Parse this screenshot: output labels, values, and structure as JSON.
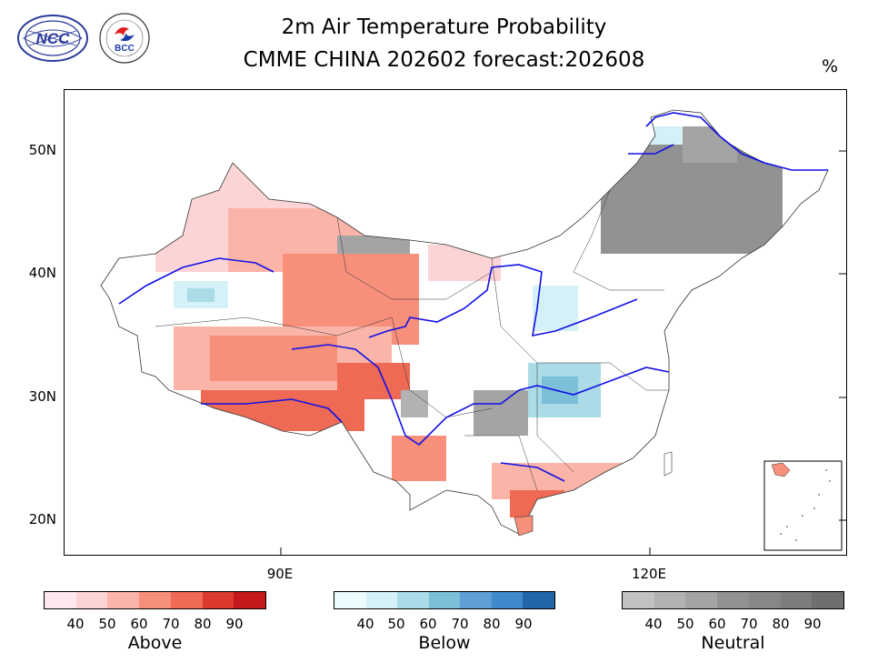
{
  "header": {
    "title_line1": "2m Air Temperature Probability",
    "title_line2": "CMME CHINA 202602 forecast:202608",
    "unit": "%"
  },
  "logos": {
    "ncc": {
      "text": "NCC",
      "icon": "ncc-logo-icon"
    },
    "bcc": {
      "text": "BCC",
      "icon": "bcc-logo-icon"
    }
  },
  "map": {
    "region": "China",
    "y_ticks": [
      "50N",
      "40N",
      "30N",
      "20N"
    ],
    "x_ticks": [
      "90E",
      "120E"
    ],
    "inset": "South China Sea islands"
  },
  "chart_data": {
    "type": "heatmap",
    "title": "2m Air Temperature Probability",
    "subtitle": "CMME CHINA 202602 forecast:202608",
    "unit": "%",
    "lat_ticks": [
      "50N",
      "40N",
      "30N",
      "20N"
    ],
    "lon_ticks": [
      "90E",
      "120E"
    ],
    "categories": [
      "Above",
      "Below",
      "Neutral"
    ],
    "legend": {
      "ticks": [
        "40",
        "50",
        "60",
        "70",
        "80",
        "90"
      ],
      "bins": [
        [
          40,
          50
        ],
        [
          50,
          60
        ],
        [
          60,
          70
        ],
        [
          70,
          80
        ],
        [
          80,
          90
        ],
        [
          90,
          100
        ]
      ]
    }
  },
  "legends": [
    {
      "label": "Above",
      "colors": [
        "#fde8f1",
        "#fdd4d6",
        "#fbb4a8",
        "#f78f7b",
        "#ef6a54",
        "#dd3a2f",
        "#c5181d"
      ]
    },
    {
      "label": "Below",
      "colors": [
        "#ecfbfd",
        "#d5f1f8",
        "#aadbe6",
        "#7cbfd9",
        "#5d9fd6",
        "#3f8acc",
        "#2066a8"
      ]
    },
    {
      "label": "Neutral",
      "colors": [
        "#c2c2c2",
        "#b2b2b2",
        "#a4a4a4",
        "#929292",
        "#878787",
        "#7d7d7d",
        "#6f6f6f"
      ]
    }
  ],
  "colors": {
    "river": "#1010e6",
    "border": "#333333"
  }
}
